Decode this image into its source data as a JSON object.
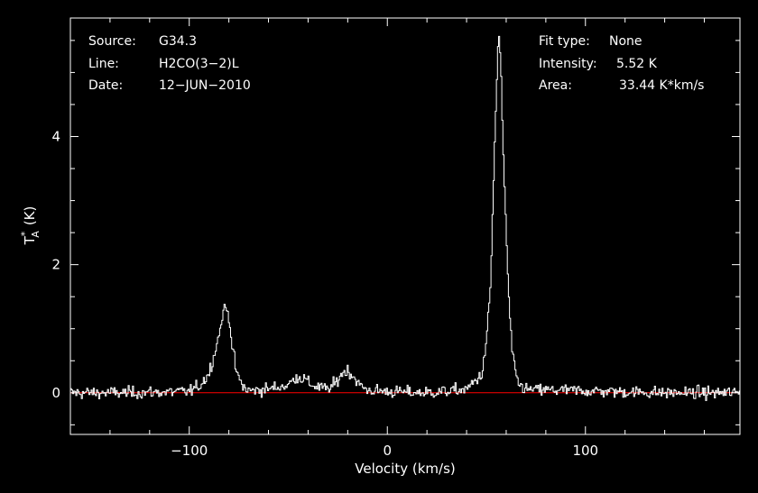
{
  "chart_data": {
    "type": "line",
    "xlabel": "Velocity (km/s)",
    "ylabel": {
      "main": "T",
      "superscript": "*",
      "subscript": "A",
      "unit": "(K)"
    },
    "xlim": [
      -160,
      178
    ],
    "ylim": [
      -0.65,
      5.85
    ],
    "x_ticks": [
      {
        "value": -100,
        "label": "−100"
      },
      {
        "value": 0,
        "label": "0"
      },
      {
        "value": 100,
        "label": "100"
      }
    ],
    "y_ticks": [
      {
        "value": 0,
        "label": "0"
      },
      {
        "value": 2,
        "label": "2"
      },
      {
        "value": 4,
        "label": "4"
      }
    ],
    "baseline": {
      "y": 0,
      "color": "#ff0000"
    },
    "colors": {
      "background": "#000000",
      "axes": "#ffffff",
      "spectrum": "#ffffff",
      "baseline": "#ff0000"
    },
    "grid": false,
    "series": [
      {
        "style": "histogram-step",
        "x": [
          -160,
          -130,
          -100,
          -95,
          -90,
          -87,
          -85,
          -84,
          -83,
          -82,
          -81,
          -80,
          -79,
          -78,
          -76,
          -73,
          -70,
          -60,
          -50,
          -46,
          -42,
          -38,
          -30,
          -26,
          -23,
          -20,
          -17,
          -14,
          -10,
          0,
          20,
          40,
          48,
          50,
          52,
          53,
          54,
          55,
          55.5,
          56,
          56.5,
          57,
          57.5,
          58,
          59,
          60,
          61,
          62,
          63,
          64,
          66,
          70,
          100,
          140,
          178
        ],
        "y": [
          0,
          0,
          0.02,
          0.1,
          0.3,
          0.65,
          0.9,
          1.05,
          1.25,
          1.32,
          1.3,
          1.2,
          0.95,
          0.65,
          0.3,
          0.1,
          0.03,
          0.06,
          0.12,
          0.25,
          0.22,
          0.12,
          0.05,
          0.15,
          0.3,
          0.35,
          0.25,
          0.12,
          0.04,
          0.02,
          0.0,
          0.05,
          0.3,
          0.8,
          1.6,
          2.6,
          3.7,
          4.6,
          5.1,
          5.45,
          5.52,
          5.3,
          4.9,
          4.3,
          3.4,
          2.5,
          1.7,
          1.1,
          0.7,
          0.4,
          0.15,
          0.05,
          0.03,
          0.0,
          0.0
        ],
        "noise_rms": 0.08
      }
    ]
  },
  "info_left": [
    {
      "key": "Source:",
      "value": "G34.3"
    },
    {
      "key": "Line:",
      "value": "H2CO(3−2)L"
    },
    {
      "key": "Date:",
      "value": "12−JUN−2010"
    }
  ],
  "info_right": [
    {
      "key": "Fit type:",
      "value": "None"
    },
    {
      "key": "Intensity:",
      "value": "5.52 K"
    },
    {
      "key": "Area:",
      "value": "33.44 K*km/s"
    }
  ]
}
